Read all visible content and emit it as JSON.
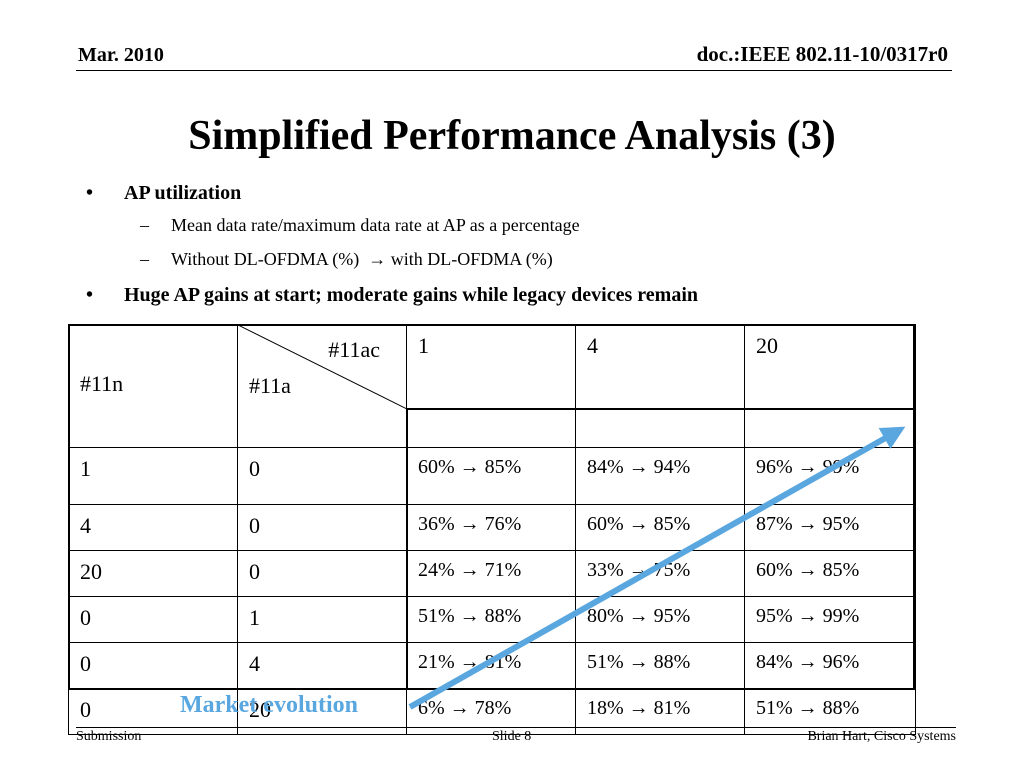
{
  "header": {
    "date": "Mar. 2010",
    "doc_id": "doc.:IEEE 802.11-10/0317r0"
  },
  "title": "Simplified Performance Analysis (3)",
  "bullets": {
    "b1": "AP utilization",
    "b1_sub1": "Mean data rate/maximum data rate at AP as a percentage",
    "b1_sub2": "Without DL-OFDMA (%)  → with DL-OFDMA (%)",
    "b2": "Huge AP gains at start; moderate gains while legacy devices remain"
  },
  "table": {
    "corner_col": "#11ac",
    "row_hdr1": "#11n",
    "row_hdr2": "#11a",
    "col_values": [
      "1",
      "4",
      "20"
    ],
    "rows": [
      {
        "n": "1",
        "a": "0",
        "cells": [
          "60% → 85%",
          "84% → 94%",
          "96% → 99%"
        ]
      },
      {
        "n": "4",
        "a": "0",
        "cells": [
          "36% → 76%",
          "60% → 85%",
          "87% → 95%"
        ]
      },
      {
        "n": "20",
        "a": "0",
        "cells": [
          "24% → 71%",
          "33% → 75%",
          "60% → 85%"
        ]
      },
      {
        "n": "0",
        "a": "1",
        "cells": [
          "51% → 88%",
          "80% → 95%",
          "95% → 99%"
        ]
      },
      {
        "n": "0",
        "a": "4",
        "cells": [
          "21% → 81%",
          "51% → 88%",
          "84% → 96%"
        ]
      },
      {
        "n": "0",
        "a": "20",
        "cells": [
          "6% → 78%",
          "18% → 81%",
          "51% → 88%"
        ]
      }
    ]
  },
  "annotation": {
    "label": "Market evolution",
    "color": "#5aa7e0"
  },
  "footer": {
    "left": "Submission",
    "center": "Slide 8",
    "right": "Brian Hart, Cisco Systems"
  }
}
